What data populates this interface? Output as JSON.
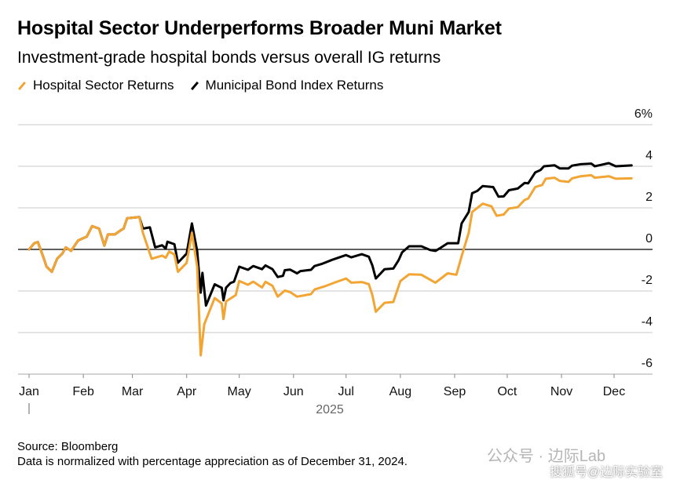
{
  "chart_data": {
    "type": "line",
    "title": "Hospital Sector Underperforms Broader Muni Market",
    "subtitle": "Investment-grade hospital bonds versus overall IG returns",
    "xlabel": "2025",
    "ylabel": "",
    "x_unit": "day of year 2025",
    "ylim": [
      -6,
      6
    ],
    "yticks": [
      6,
      4,
      2,
      0,
      -2,
      -4,
      -6
    ],
    "ytick_labels": [
      "6%",
      "4",
      "2",
      "0",
      "-2",
      "-4",
      "-6"
    ],
    "months": [
      {
        "label": "Jan",
        "day": 0
      },
      {
        "label": "Feb",
        "day": 31
      },
      {
        "label": "Mar",
        "day": 59
      },
      {
        "label": "Apr",
        "day": 90
      },
      {
        "label": "May",
        "day": 120
      },
      {
        "label": "Jun",
        "day": 151
      },
      {
        "label": "Jul",
        "day": 181
      },
      {
        "label": "Aug",
        "day": 212
      },
      {
        "label": "Sep",
        "day": 243
      },
      {
        "label": "Oct",
        "day": 273
      },
      {
        "label": "Nov",
        "day": 304
      },
      {
        "label": "Dec",
        "day": 334
      }
    ],
    "grid": true,
    "legend_position": "top-left",
    "series": [
      {
        "name": "Hospital Sector Returns",
        "color": "#f2a533",
        "points": [
          [
            0,
            0
          ],
          [
            3,
            0.3
          ],
          [
            5,
            0.35
          ],
          [
            8,
            -0.33
          ],
          [
            10,
            -0.83
          ],
          [
            13,
            -1.08
          ],
          [
            16,
            -0.45
          ],
          [
            19,
            -0.2
          ],
          [
            21,
            0.1
          ],
          [
            24,
            -0.07
          ],
          [
            28,
            0.43
          ],
          [
            33,
            0.62
          ],
          [
            36,
            1.12
          ],
          [
            40,
            1.0
          ],
          [
            43,
            0.18
          ],
          [
            45,
            0.72
          ],
          [
            49,
            0.72
          ],
          [
            52,
            0.9
          ],
          [
            54,
            1.0
          ],
          [
            56,
            1.5
          ],
          [
            63,
            1.56
          ],
          [
            65,
            0.8
          ],
          [
            70,
            -0.45
          ],
          [
            76,
            -0.3
          ],
          [
            78,
            -0.4
          ],
          [
            80,
            -0.1
          ],
          [
            83,
            -0.25
          ],
          [
            85,
            -1.08
          ],
          [
            90,
            -0.65
          ],
          [
            93,
            0.8
          ],
          [
            96,
            -0.83
          ],
          [
            98,
            -5.1
          ],
          [
            100,
            -3.6
          ],
          [
            106,
            -2.34
          ],
          [
            110,
            -2.6
          ],
          [
            111,
            -3.35
          ],
          [
            112.5,
            -2.5
          ],
          [
            118,
            -2.2
          ],
          [
            120,
            -1.52
          ],
          [
            125,
            -1.7
          ],
          [
            128,
            -1.55
          ],
          [
            133,
            -1.83
          ],
          [
            135,
            -1.56
          ],
          [
            139,
            -1.75
          ],
          [
            142,
            -2.27
          ],
          [
            146,
            -1.98
          ],
          [
            149,
            -2.05
          ],
          [
            153,
            -2.27
          ],
          [
            161,
            -2.15
          ],
          [
            163,
            -1.93
          ],
          [
            169,
            -1.77
          ],
          [
            175,
            -1.58
          ],
          [
            181,
            -1.4
          ],
          [
            184,
            -1.6
          ],
          [
            190,
            -1.57
          ],
          [
            194,
            -1.67
          ],
          [
            196,
            -2.2
          ],
          [
            198,
            -3.0
          ],
          [
            203,
            -2.57
          ],
          [
            208,
            -2.53
          ],
          [
            212,
            -1.52
          ],
          [
            217,
            -1.2
          ],
          [
            224,
            -1.22
          ],
          [
            232,
            -1.6
          ],
          [
            239,
            -1.15
          ],
          [
            244,
            -1.22
          ],
          [
            247,
            -0.33
          ],
          [
            251,
            0.8
          ],
          [
            253,
            1.8
          ],
          [
            259,
            2.2
          ],
          [
            264,
            2.07
          ],
          [
            267,
            1.62
          ],
          [
            271,
            1.68
          ],
          [
            274,
            1.97
          ],
          [
            279,
            2.03
          ],
          [
            283,
            2.38
          ],
          [
            285,
            2.45
          ],
          [
            289,
            3.0
          ],
          [
            293,
            3.1
          ],
          [
            295,
            3.4
          ],
          [
            300,
            3.45
          ],
          [
            303,
            3.3
          ],
          [
            308,
            3.25
          ],
          [
            310,
            3.42
          ],
          [
            315,
            3.52
          ],
          [
            321,
            3.57
          ],
          [
            323,
            3.45
          ],
          [
            331,
            3.52
          ],
          [
            335,
            3.4
          ],
          [
            344,
            3.42
          ]
        ]
      },
      {
        "name": "Municipal Bond Index Returns",
        "color": "#000000",
        "points": [
          [
            0,
            0
          ],
          [
            3,
            0.3
          ],
          [
            5,
            0.35
          ],
          [
            8,
            -0.33
          ],
          [
            10,
            -0.83
          ],
          [
            13,
            -1.08
          ],
          [
            16,
            -0.45
          ],
          [
            19,
            -0.2
          ],
          [
            21,
            0.1
          ],
          [
            24,
            -0.07
          ],
          [
            28,
            0.43
          ],
          [
            33,
            0.62
          ],
          [
            36,
            1.12
          ],
          [
            40,
            1.0
          ],
          [
            43,
            0.18
          ],
          [
            45,
            0.72
          ],
          [
            49,
            0.72
          ],
          [
            52,
            0.9
          ],
          [
            54,
            1.0
          ],
          [
            56,
            1.5
          ],
          [
            63,
            1.56
          ],
          [
            65,
            1.0
          ],
          [
            69,
            1.06
          ],
          [
            72,
            0.1
          ],
          [
            76,
            0.2
          ],
          [
            78,
            0.04
          ],
          [
            79,
            0.37
          ],
          [
            83,
            0.25
          ],
          [
            85,
            -0.64
          ],
          [
            90,
            -0.2
          ],
          [
            93,
            1.25
          ],
          [
            96,
            -0.07
          ],
          [
            98,
            -2.08
          ],
          [
            99,
            -1.13
          ],
          [
            101,
            -2.7
          ],
          [
            106,
            -1.68
          ],
          [
            110,
            -1.85
          ],
          [
            111,
            -2.45
          ],
          [
            112.5,
            -1.84
          ],
          [
            115,
            -1.62
          ],
          [
            117,
            -1.55
          ],
          [
            120,
            -0.83
          ],
          [
            125,
            -0.98
          ],
          [
            128,
            -0.8
          ],
          [
            133,
            -0.95
          ],
          [
            135,
            -0.77
          ],
          [
            139,
            -0.95
          ],
          [
            142,
            -1.33
          ],
          [
            145,
            -1.27
          ],
          [
            146,
            -1.0
          ],
          [
            149,
            -0.97
          ],
          [
            153,
            -1.15
          ],
          [
            155,
            -1.04
          ],
          [
            161,
            -0.98
          ],
          [
            163,
            -0.8
          ],
          [
            167,
            -0.7
          ],
          [
            173,
            -0.5
          ],
          [
            181,
            -0.27
          ],
          [
            184,
            -0.38
          ],
          [
            190,
            -0.23
          ],
          [
            194,
            -0.35
          ],
          [
            196,
            -0.77
          ],
          [
            198,
            -1.4
          ],
          [
            203,
            -0.95
          ],
          [
            208,
            -0.92
          ],
          [
            211,
            -0.52
          ],
          [
            213,
            -0.14
          ],
          [
            217,
            0.15
          ],
          [
            224,
            0.15
          ],
          [
            229,
            -0.03
          ],
          [
            232,
            -0.07
          ],
          [
            235,
            0.08
          ],
          [
            239,
            0.3
          ],
          [
            245,
            0.3
          ],
          [
            247,
            1.25
          ],
          [
            251,
            1.8
          ],
          [
            253,
            2.7
          ],
          [
            256,
            2.82
          ],
          [
            259,
            3.05
          ],
          [
            265,
            3.0
          ],
          [
            268,
            2.54
          ],
          [
            271,
            2.55
          ],
          [
            274,
            2.85
          ],
          [
            279,
            2.93
          ],
          [
            283,
            3.2
          ],
          [
            285,
            3.18
          ],
          [
            289,
            3.7
          ],
          [
            292,
            3.82
          ],
          [
            294,
            4.0
          ],
          [
            300,
            4.05
          ],
          [
            303,
            3.9
          ],
          [
            308,
            3.9
          ],
          [
            310,
            4.03
          ],
          [
            315,
            4.1
          ],
          [
            321,
            4.13
          ],
          [
            323,
            4.0
          ],
          [
            331,
            4.15
          ],
          [
            335,
            4.0
          ],
          [
            344,
            4.04
          ]
        ]
      }
    ]
  },
  "footer": {
    "source": "Source: Bloomberg",
    "note": "Data is normalized with percentage appreciation as of December 31, 2024."
  },
  "watermark": {
    "line1": "公众号 · 边际Lab",
    "line2": "搜狐号@边际实验室"
  }
}
